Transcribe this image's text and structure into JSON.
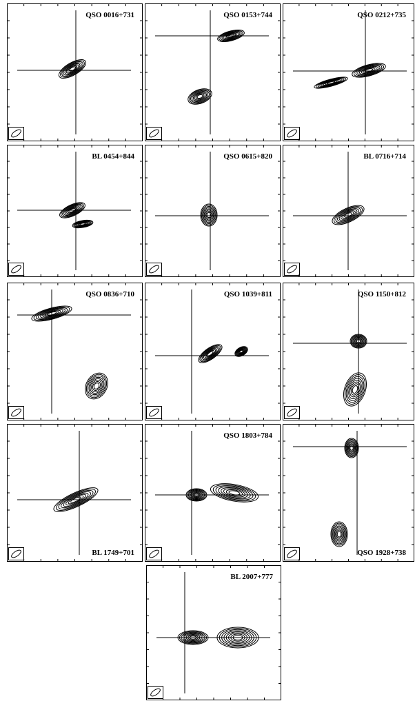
{
  "panels": [
    {
      "label": "QSO 0016+731"
    },
    {
      "label": "QSO 0153+744"
    },
    {
      "label": "QSO 0212+735"
    },
    {
      "label": "BL 0454+844"
    },
    {
      "label": "QSO 0615+820"
    },
    {
      "label": "BL 0716+714"
    },
    {
      "label": "QSO 0836+710"
    },
    {
      "label": "QSO 1039+811"
    },
    {
      "label": "QSO 1150+812"
    },
    {
      "label": "BL 1749+701"
    },
    {
      "label": "QSO 1803+784"
    },
    {
      "label": "QSO 1928+738"
    },
    {
      "label": "BL 2007+777"
    }
  ]
}
